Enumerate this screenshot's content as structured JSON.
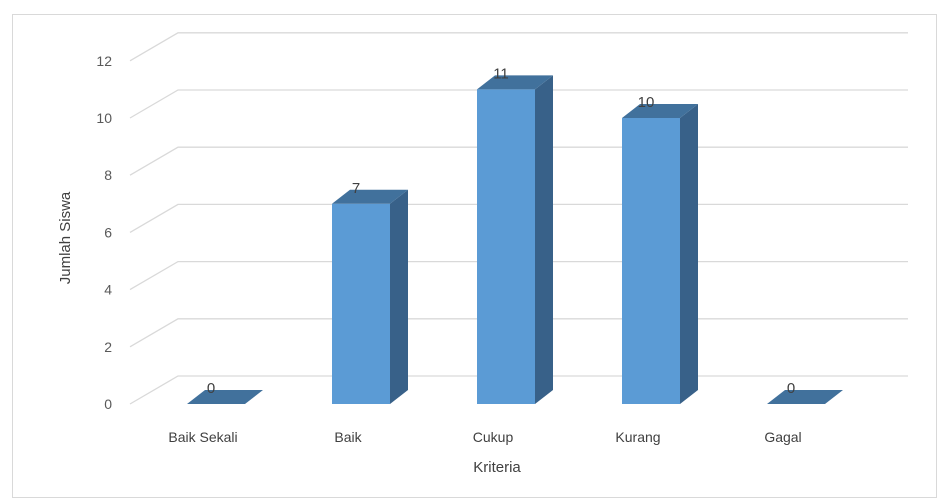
{
  "chart_data": {
    "type": "bar",
    "style": "3d-column",
    "categories": [
      "Baik Sekali",
      "Baik",
      "Cukup",
      "Kurang",
      "Gagal"
    ],
    "values": [
      0,
      7,
      11,
      10,
      0
    ],
    "title": "",
    "xlabel": "Kriteria",
    "ylabel": "Jumlah Siswa",
    "ylim": [
      0,
      12
    ],
    "yticks": [
      0,
      2,
      4,
      6,
      8,
      10,
      12
    ],
    "grid": true,
    "legend": "none",
    "data_labels": true,
    "colors": {
      "bar_front": "#5b9bd5",
      "bar_side": "#386189",
      "bar_top": "#41719c",
      "grid": "#d9d9d9",
      "text": "#404040"
    }
  }
}
